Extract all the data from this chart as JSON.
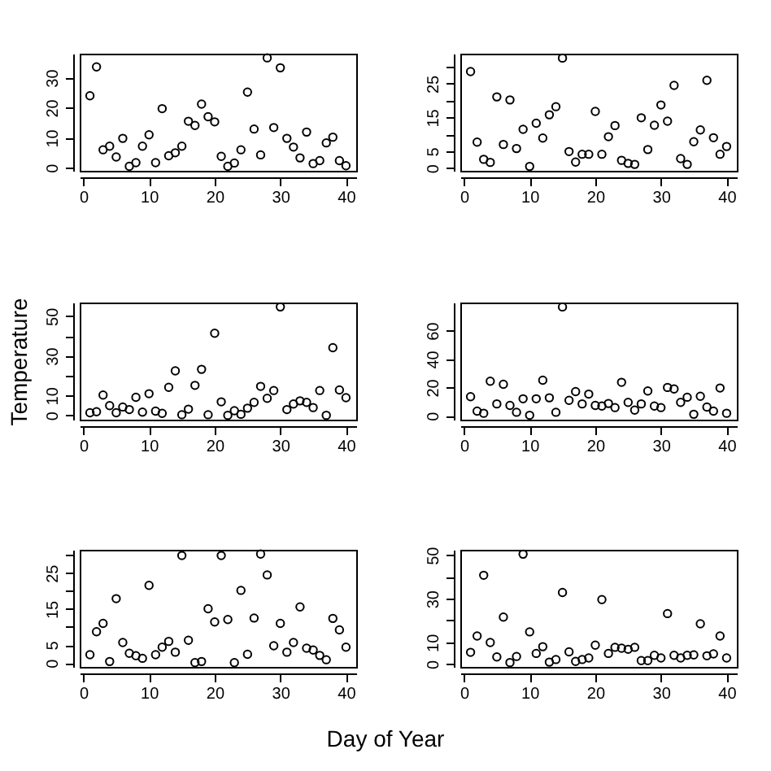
{
  "chart_data": [
    {
      "type": "scatter",
      "marker": "circle",
      "grid": false,
      "x": [
        1,
        2,
        3,
        4,
        5,
        6,
        7,
        8,
        9,
        10,
        11,
        12,
        13,
        14,
        15,
        16,
        17,
        18,
        19,
        20,
        21,
        22,
        23,
        24,
        25,
        26,
        27,
        28,
        29,
        30,
        31,
        32,
        33,
        34,
        35,
        36,
        37,
        38,
        39,
        40
      ],
      "xlim": [
        -0.56,
        41.56
      ],
      "xticks": [
        0,
        10,
        20,
        30,
        40
      ],
      "ylim": [
        -1,
        38
      ],
      "yticks": [
        0,
        10,
        20,
        30
      ],
      "series": [
        {
          "color": "#000000",
          "values": [
            24,
            33.6,
            6,
            7.2,
            3.6,
            9.8,
            0.5,
            1.7,
            7.2,
            11,
            1.7,
            19.7,
            4,
            5,
            7.2,
            15.5,
            14.1,
            21.2,
            17,
            15.3,
            3.8,
            0.5,
            1.6,
            6,
            25.2,
            12.9,
            4.3,
            36.6,
            13.4,
            33.3,
            9.8,
            6.9,
            3.3,
            11.9,
            1.4,
            2.4,
            8.3,
            10.2,
            2.4,
            0.7
          ]
        }
      ]
    },
    {
      "type": "scatter",
      "marker": "circle",
      "grid": false,
      "x": [
        1,
        2,
        3,
        4,
        5,
        6,
        7,
        8,
        9,
        10,
        11,
        12,
        13,
        14,
        15,
        16,
        17,
        18,
        19,
        20,
        21,
        22,
        23,
        24,
        25,
        26,
        27,
        28,
        29,
        30,
        31,
        32,
        33,
        34,
        35,
        36,
        37,
        38,
        39,
        40
      ],
      "xlim": [
        -0.56,
        41.56
      ],
      "xticks": [
        0,
        10,
        20,
        30,
        40
      ],
      "ylim": [
        -0.8,
        33.9
      ],
      "yticks": [
        0,
        5,
        {
          "value": 10,
          "label": null
        },
        15,
        {
          "value": 20,
          "label": null
        },
        25,
        {
          "value": 30,
          "label": null
        }
      ],
      "series": [
        {
          "color": "#000000",
          "values": [
            28.6,
            7.7,
            2.6,
            1.7,
            21.1,
            7,
            20.2,
            5.8,
            11.5,
            0.5,
            13.3,
            8.9,
            15.8,
            18.2,
            32.6,
            4.9,
            1.8,
            4.1,
            4.1,
            16.8,
            4.1,
            9.3,
            12.6,
            2.3,
            1.4,
            1.1,
            14.9,
            5.5,
            12.7,
            18.7,
            13.9,
            24.5,
            2.8,
            1.1,
            7.8,
            11.3,
            26,
            9,
            4.1,
            6.4
          ]
        }
      ]
    },
    {
      "type": "scatter",
      "marker": "circle",
      "grid": false,
      "ylabel": "Temperature",
      "x": [
        1,
        2,
        3,
        4,
        5,
        6,
        7,
        8,
        9,
        10,
        11,
        12,
        13,
        14,
        15,
        16,
        17,
        18,
        19,
        20,
        21,
        22,
        23,
        24,
        25,
        26,
        27,
        28,
        29,
        30,
        31,
        32,
        33,
        34,
        35,
        36,
        37,
        38,
        39,
        40
      ],
      "xlim": [
        -0.56,
        41.56
      ],
      "xticks": [
        0,
        10,
        20,
        30,
        40
      ],
      "ylim": [
        -2.2,
        56.9
      ],
      "yticks": [
        0,
        10,
        {
          "value": 20,
          "label": null
        },
        30,
        {
          "value": 40,
          "label": null
        },
        50
      ],
      "series": [
        {
          "color": "#000000",
          "values": [
            1.3,
            1.8,
            10.2,
            4.9,
            1.3,
            4.2,
            2.9,
            9.1,
            1.6,
            10.9,
            2.1,
            1,
            14.1,
            22.4,
            0.3,
            3.1,
            15.1,
            23.2,
            0.3,
            41.4,
            6.8,
            0,
            2.3,
            0.5,
            3.6,
            6.5,
            14.6,
            8.6,
            12.5,
            54.7,
            2.9,
            5.7,
            7.3,
            6.5,
            3.9,
            12.5,
            0,
            34.1,
            12.8,
            8.9
          ]
        }
      ]
    },
    {
      "type": "scatter",
      "marker": "circle",
      "grid": false,
      "x": [
        1,
        2,
        3,
        4,
        5,
        6,
        7,
        8,
        9,
        10,
        11,
        12,
        13,
        14,
        15,
        16,
        17,
        18,
        19,
        20,
        21,
        22,
        23,
        24,
        25,
        26,
        27,
        28,
        29,
        30,
        31,
        32,
        33,
        34,
        35,
        36,
        37,
        38,
        39,
        40
      ],
      "xlim": [
        -0.56,
        41.56
      ],
      "xticks": [
        0,
        10,
        20,
        30,
        40
      ],
      "ylim": [
        -2.7,
        79.8
      ],
      "yticks": [
        0,
        20,
        40,
        60
      ],
      "series": [
        {
          "color": "#000000",
          "values": [
            13.5,
            3.3,
            1.8,
            24.4,
            8.4,
            22.2,
            7.3,
            2.5,
            12,
            0.4,
            12,
            25.1,
            12.7,
            2.5,
            76.7,
            10.9,
            17.1,
            8.4,
            15.3,
            7.3,
            6.9,
            8.7,
            5.8,
            23.6,
            9.5,
            4,
            8.4,
            17.5,
            6.9,
            5.8,
            20,
            18.9,
            9.5,
            13.1,
            1.1,
            13.8,
            6.2,
            3.3,
            19.6,
            1.8
          ]
        }
      ]
    },
    {
      "type": "scatter",
      "marker": "circle",
      "grid": false,
      "xlabel": "Day of Year",
      "x": [
        1,
        2,
        3,
        4,
        5,
        6,
        7,
        8,
        9,
        10,
        11,
        12,
        13,
        14,
        15,
        16,
        17,
        18,
        19,
        20,
        21,
        22,
        23,
        24,
        25,
        26,
        27,
        28,
        29,
        30,
        31,
        32,
        33,
        34,
        35,
        36,
        37,
        38,
        39,
        40
      ],
      "xlim": [
        -0.56,
        41.56
      ],
      "xticks": [
        0,
        10,
        20,
        30,
        40
      ],
      "ylim": [
        -1.1,
        31.5
      ],
      "yticks": [
        0,
        5,
        {
          "value": 10,
          "label": null
        },
        15,
        {
          "value": 20,
          "label": null
        },
        25,
        {
          "value": 30,
          "label": null
        }
      ],
      "series": [
        {
          "color": "#000000",
          "values": [
            2.3,
            8.7,
            11,
            0.4,
            17.9,
            5.7,
            2.7,
            2,
            1.3,
            21.6,
            2.3,
            4.4,
            6,
            3,
            29.9,
            6.3,
            0.1,
            0.4,
            15.1,
            11.4,
            29.9,
            12.1,
            0.1,
            20.2,
            2.4,
            12.5,
            30.3,
            24.5,
            4.8,
            11,
            3,
            5.7,
            15.6,
            4.1,
            3.6,
            2.1,
            0.9,
            12.4,
            9.2,
            4.4
          ]
        }
      ]
    },
    {
      "type": "scatter",
      "marker": "circle",
      "grid": false,
      "x": [
        1,
        2,
        3,
        4,
        5,
        6,
        7,
        8,
        9,
        10,
        11,
        12,
        13,
        14,
        15,
        16,
        17,
        18,
        19,
        20,
        21,
        22,
        23,
        24,
        25,
        26,
        27,
        28,
        29,
        30,
        31,
        32,
        33,
        34,
        35,
        36,
        37,
        38,
        39,
        40
      ],
      "xlim": [
        -0.56,
        41.56
      ],
      "xticks": [
        0,
        10,
        20,
        30,
        40
      ],
      "ylim": [
        -1.3,
        52.5
      ],
      "yticks": [
        0,
        10,
        {
          "value": 20,
          "label": null
        },
        30,
        {
          "value": 40,
          "label": null
        },
        50
      ],
      "series": [
        {
          "color": "#000000",
          "values": [
            5.4,
            12.9,
            40.8,
            9.9,
            3.3,
            21.6,
            0.7,
            3.5,
            50.5,
            14.8,
            4.9,
            8,
            0.9,
            2.1,
            32.9,
            5.6,
            1.2,
            2.1,
            2.8,
            8.7,
            29.6,
            4.9,
            7.7,
            7.3,
            6.8,
            7.7,
            1.6,
            1.6,
            4,
            2.8,
            23.2,
            4,
            2.8,
            4,
            4.2,
            18.5,
            3.8,
            4.7,
            12.9,
            2.8
          ]
        }
      ]
    }
  ]
}
